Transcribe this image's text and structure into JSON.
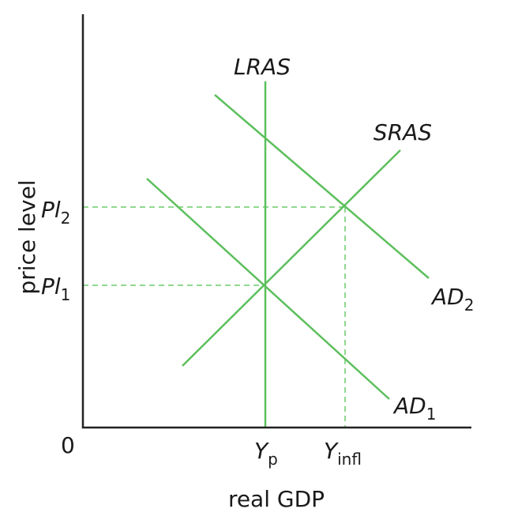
{
  "axes": {
    "x_label": "real GDP",
    "y_label": "price level",
    "origin": "0"
  },
  "curves": {
    "lras": "LRAS",
    "sras": "SRAS",
    "ad1": {
      "text": "AD",
      "sub": "1"
    },
    "ad2": {
      "text": "AD",
      "sub": "2"
    }
  },
  "levels": {
    "pl1": {
      "text": "Pl",
      "sub": "1"
    },
    "pl2": {
      "text": "Pl",
      "sub": "2"
    }
  },
  "outputs": {
    "yp": {
      "text": "Y",
      "sub": "p"
    },
    "yinfl": {
      "text": "Y",
      "sub": "infl"
    }
  }
}
